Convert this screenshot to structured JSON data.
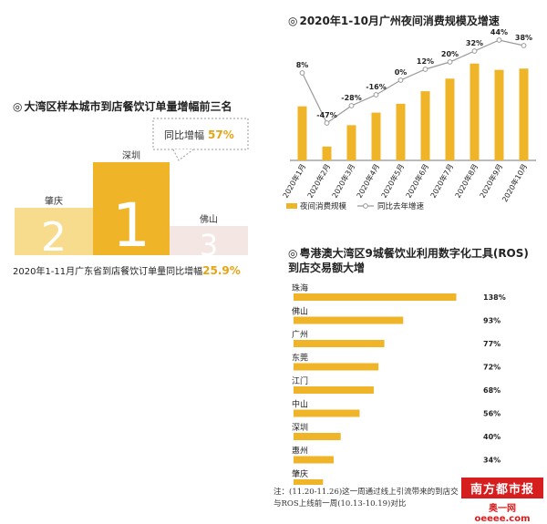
{
  "colors": {
    "gold": "#f0b429",
    "gold_light": "#f7dc8e",
    "pale_pink": "#f4e6e3",
    "gray_line": "#999999",
    "text": "#222222",
    "accent_text": "#e6a416",
    "brand_red": "#d71e1e"
  },
  "chart_data": [
    {
      "id": "podium",
      "type": "bar",
      "title": "大湾区样本城市到店餐饮订单量增幅前三名",
      "categories": [
        "肇庆",
        "深圳",
        "佛山"
      ],
      "ranks": [
        "2",
        "1",
        "3"
      ],
      "callout": {
        "label": "同比增幅",
        "value": "57%"
      },
      "footer": {
        "text": "2020年1-11月广东省到店餐饮订单量同比增幅",
        "value": "25.9%"
      }
    },
    {
      "id": "monthly",
      "type": "bar+line",
      "title": "2020年1-10月广州夜间消费规模及增速",
      "categories": [
        "2020年1月",
        "2020年2月",
        "2020年3月",
        "2020年4月",
        "2020年5月",
        "2020年6月",
        "2020年7月",
        "2020年8月",
        "2020年9月",
        "2020年10月"
      ],
      "series": [
        {
          "name": "夜间消费规模",
          "type": "bar",
          "values": [
            0.43,
            0.11,
            0.28,
            0.38,
            0.45,
            0.55,
            0.65,
            0.77,
            0.72,
            0.73
          ]
        },
        {
          "name": "同比去年增速",
          "type": "line",
          "values": [
            8,
            -47,
            -28,
            -16,
            0,
            12,
            20,
            32,
            44,
            38
          ],
          "labels": [
            "8%",
            "-47%",
            "-28%",
            "-16%",
            "0%",
            "12%",
            "20%",
            "32%",
            "44%",
            "38%"
          ]
        }
      ],
      "line_ylim": [
        -60,
        50
      ]
    },
    {
      "id": "ros",
      "type": "bar",
      "orientation": "horizontal",
      "title_lines": [
        "粤港澳大湾区9城餐饮业利用数字化工具(ROS)",
        "到店交易额大增"
      ],
      "categories": [
        "珠海",
        "佛山",
        "广州",
        "东莞",
        "江门",
        "中山",
        "深圳",
        "惠州",
        "肇庆"
      ],
      "values": [
        138,
        93,
        77,
        72,
        68,
        56,
        40,
        34,
        25
      ],
      "labels": [
        "138%",
        "93%",
        "77%",
        "72%",
        "68%",
        "56%",
        "40%",
        "34%",
        "25%"
      ],
      "xlim": [
        0,
        150
      ]
    }
  ],
  "note": {
    "line1": "注：(11.20-11.26)这一周通过线上引流带来的到店交",
    "line2": "与ROS上线前一周(10.13-10.19)对比"
  },
  "brand": {
    "logo_text": "南方都市报",
    "site": "奥一网oeeee.com"
  }
}
